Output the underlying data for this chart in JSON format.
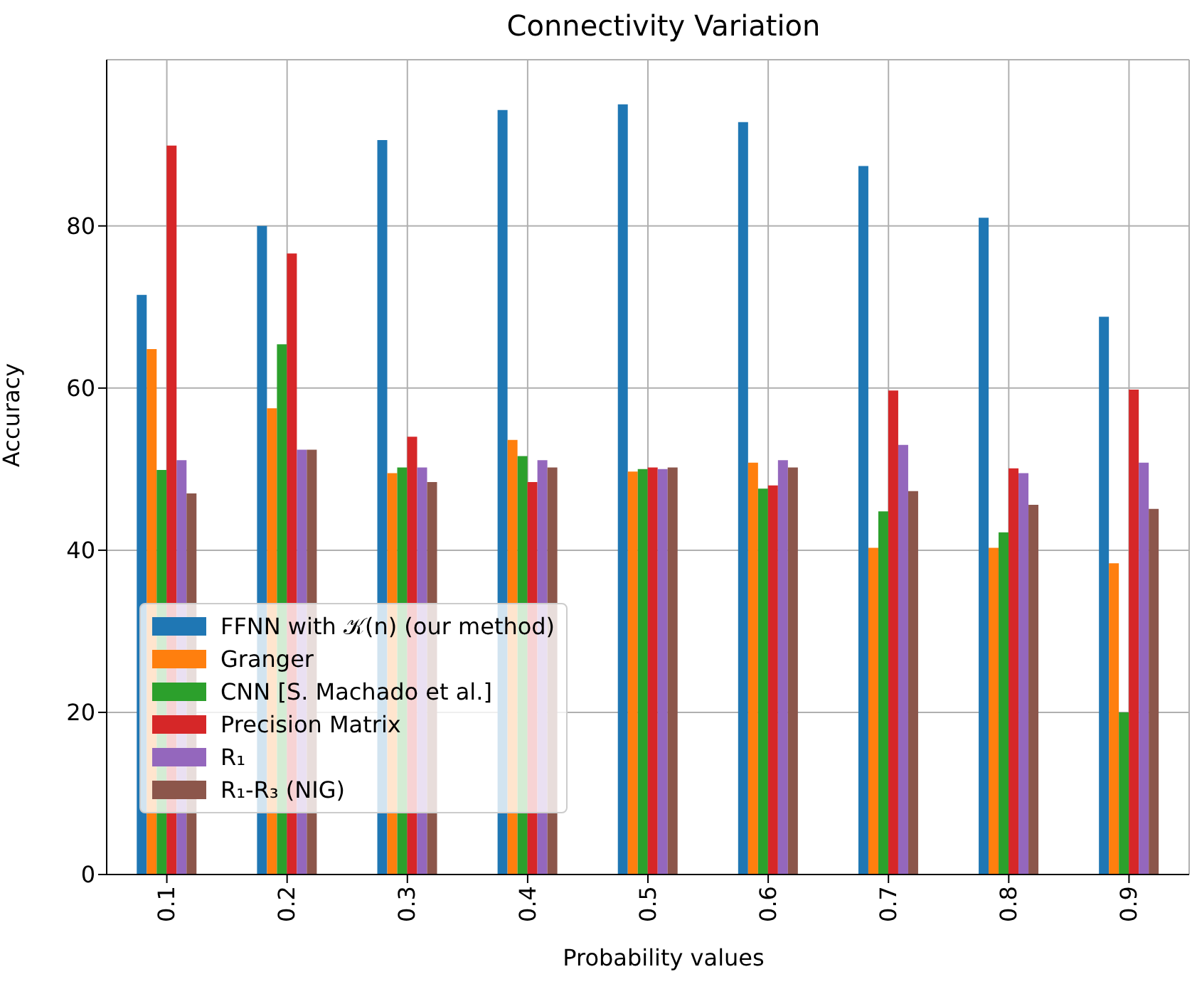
{
  "chart_data": {
    "type": "bar",
    "title": "Connectivity Variation",
    "xlabel": "Probability values",
    "ylabel": "Accuracy",
    "categories": [
      "0.1",
      "0.2",
      "0.3",
      "0.4",
      "0.5",
      "0.6",
      "0.7",
      "0.8",
      "0.9"
    ],
    "series": [
      {
        "name": "FFNN with 𝒦(n) (our method)",
        "color": "#1f77b4",
        "values": [
          71.5,
          80,
          90.6,
          94.3,
          95,
          92.8,
          87.4,
          81,
          68.8
        ]
      },
      {
        "name": "Granger",
        "color": "#ff7f0e",
        "values": [
          64.8,
          57.5,
          49.5,
          53.6,
          49.7,
          50.8,
          40.3,
          40.3,
          38.4
        ]
      },
      {
        "name": "CNN [S. Machado et al.]",
        "color": "#2ca02c",
        "values": [
          49.9,
          65.4,
          50.2,
          51.6,
          50,
          47.6,
          44.8,
          42.2,
          20
        ]
      },
      {
        "name": "Precision Matrix",
        "color": "#d62728",
        "values": [
          89.9,
          76.6,
          54,
          48.4,
          50.2,
          48,
          59.7,
          50.1,
          59.8
        ]
      },
      {
        "name": "R₁",
        "color": "#9467bd",
        "values": [
          51.1,
          52.4,
          50.2,
          51.1,
          50,
          51.1,
          53,
          49.5,
          50.8
        ]
      },
      {
        "name": "R₁-R₃ (NIG)",
        "color": "#8c564b",
        "values": [
          47,
          52.4,
          48.4,
          50.2,
          50.2,
          50.2,
          47.3,
          45.6,
          45.1
        ]
      }
    ],
    "ylim": [
      0,
      100.5
    ],
    "yticks": [
      0,
      20,
      40,
      60,
      80
    ],
    "grid": true,
    "legend": "bottom left"
  }
}
